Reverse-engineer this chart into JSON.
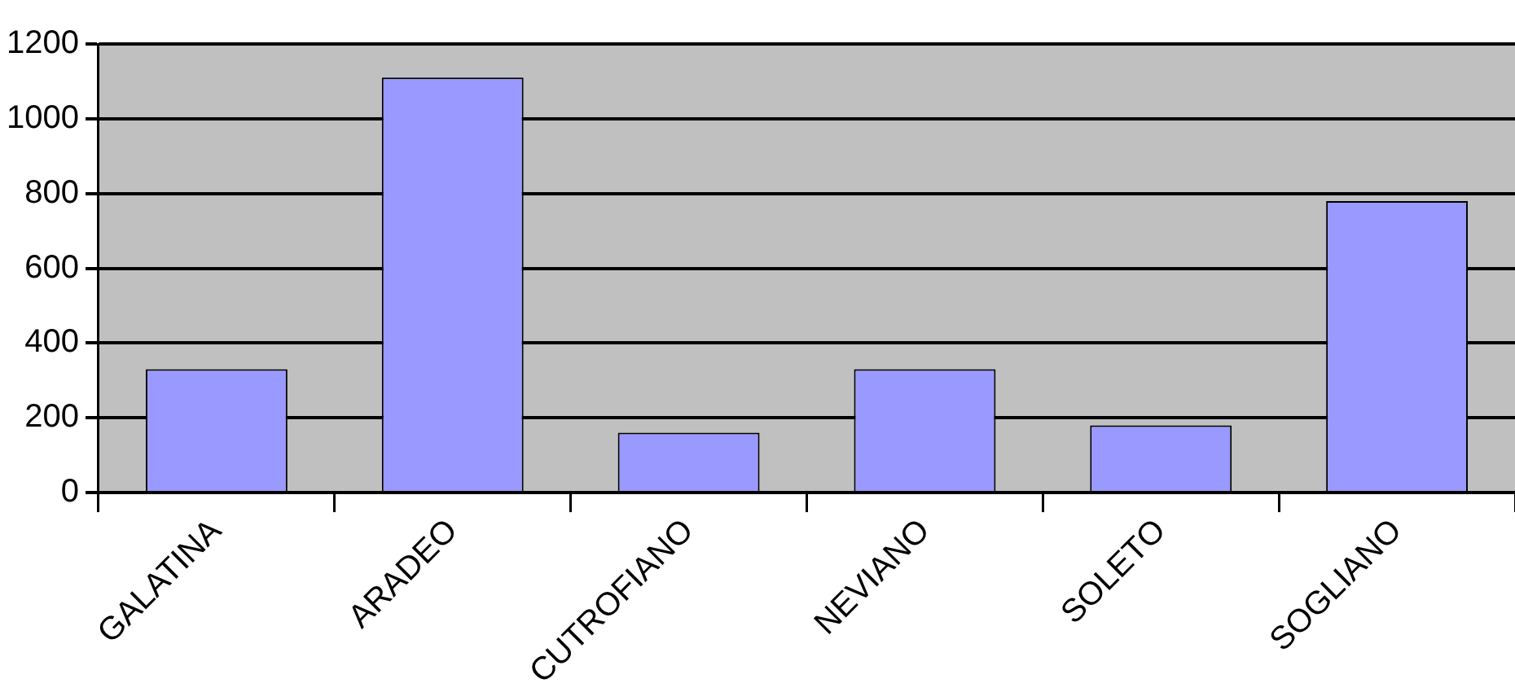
{
  "chart_data": {
    "type": "bar",
    "categories": [
      "GALATINA",
      "ARADEO",
      "CUTROFIANO",
      "NEVIANO",
      "SOLETO",
      "SOGLIANO"
    ],
    "values": [
      330,
      1110,
      160,
      330,
      180,
      780
    ],
    "color": "#9999ff",
    "ylim": [
      0,
      1200
    ],
    "yticks": [
      0,
      200,
      400,
      600,
      800,
      1000,
      1200
    ],
    "grid": "y",
    "legend": false
  }
}
